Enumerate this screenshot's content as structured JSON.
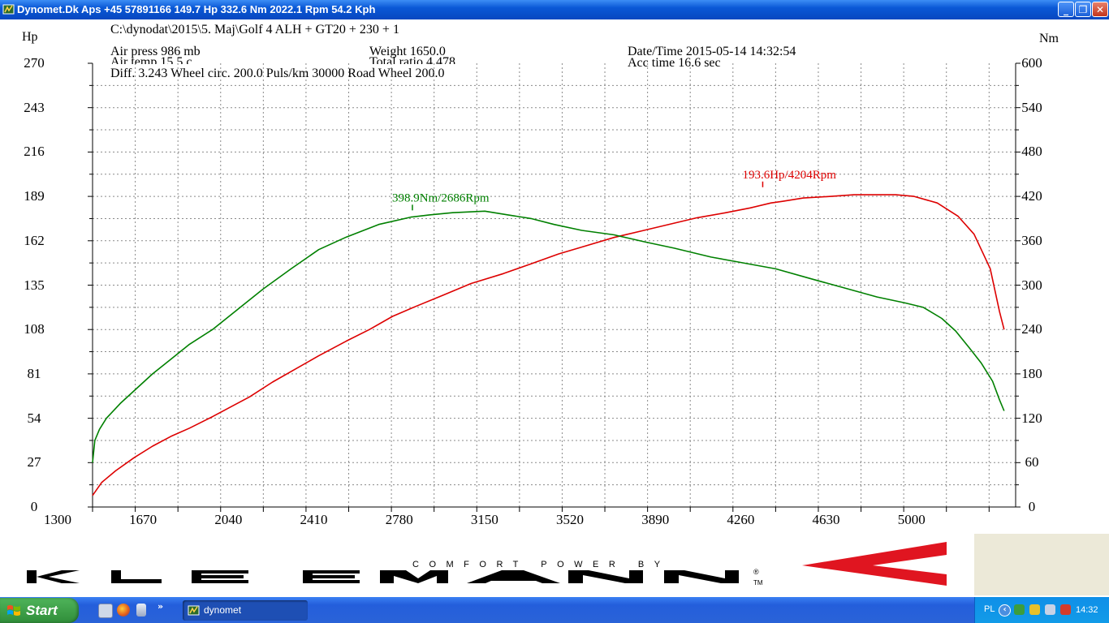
{
  "window": {
    "title": "Dynomet.Dk Aps +45 57891166  149.7 Hp 332.6 Nm 2022.1 Rpm 54.2 Kph",
    "buttons": [
      "_",
      "❐",
      "✕"
    ]
  },
  "header": {
    "path": "C:\\dynodat\\2015\\5. Maj\\Golf 4 ALH + GT20 + 230 + 1",
    "air_press": "Air press   986 mb",
    "air_temp": "Air temp   15.5 c",
    "weight": "Weight   1650.0",
    "total_ratio": "Total ratio 4.478",
    "datetime": "Date/Time  2015-05-14 14:32:54",
    "acc_time": "Acc time   16.6 sec",
    "diff_line": "Diff.     3.243   Wheel circ. 200.0   Puls/km   30000   Road Wheel 200.0"
  },
  "chart_data": {
    "type": "line",
    "xlabel": "",
    "ylabel": "Hp",
    "y2label": "Nm",
    "xlim": [
      1300,
      5300
    ],
    "ylim": [
      0,
      270
    ],
    "y2lim": [
      0,
      600
    ],
    "x_ticks": [
      "1300",
      "1670",
      "2040",
      "2410",
      "2780",
      "3150",
      "3520",
      "3890",
      "4260",
      "4630",
      "5000"
    ],
    "y_ticks": [
      "0",
      "27",
      "54",
      "81",
      "108",
      "135",
      "162",
      "189",
      "216",
      "243",
      "270"
    ],
    "y2_ticks": [
      "0",
      "60",
      "120",
      "180",
      "240",
      "300",
      "360",
      "420",
      "480",
      "540",
      "600"
    ],
    "grid": true,
    "series": [
      {
        "name": "",
        "axis": "left",
        "color": "#dd0000",
        "points": [
          [
            1300,
            7
          ],
          [
            1340,
            15
          ],
          [
            1400,
            22
          ],
          [
            1480,
            30
          ],
          [
            1560,
            37
          ],
          [
            1640,
            43
          ],
          [
            1720,
            48
          ],
          [
            1820,
            55
          ],
          [
            1900,
            61
          ],
          [
            1980,
            67
          ],
          [
            2080,
            76
          ],
          [
            2180,
            84
          ],
          [
            2280,
            92
          ],
          [
            2400,
            101
          ],
          [
            2500,
            108
          ],
          [
            2600,
            116
          ],
          [
            2700,
            122
          ],
          [
            2820,
            129
          ],
          [
            2940,
            136
          ],
          [
            3080,
            142
          ],
          [
            3200,
            148
          ],
          [
            3320,
            154
          ],
          [
            3440,
            159
          ],
          [
            3560,
            164
          ],
          [
            3680,
            168
          ],
          [
            3800,
            172
          ],
          [
            3920,
            176
          ],
          [
            4040,
            179
          ],
          [
            4150,
            182
          ],
          [
            4240,
            185
          ],
          [
            4290,
            186
          ],
          [
            4380,
            188
          ],
          [
            4500,
            189
          ],
          [
            4600,
            190
          ],
          [
            4700,
            190
          ],
          [
            4780,
            190
          ],
          [
            4860,
            189
          ],
          [
            4960,
            185
          ],
          [
            5050,
            177
          ],
          [
            5120,
            166
          ],
          [
            5190,
            145
          ],
          [
            5230,
            119
          ],
          [
            5250,
            108
          ]
        ]
      },
      {
        "name": "",
        "axis": "right",
        "color": "#008000",
        "points": [
          [
            1300,
            60
          ],
          [
            1310,
            90
          ],
          [
            1330,
            105
          ],
          [
            1360,
            120
          ],
          [
            1420,
            140
          ],
          [
            1490,
            160
          ],
          [
            1560,
            180
          ],
          [
            1640,
            200
          ],
          [
            1720,
            220
          ],
          [
            1820,
            240
          ],
          [
            1940,
            270
          ],
          [
            2040,
            295
          ],
          [
            2160,
            322
          ],
          [
            2280,
            348
          ],
          [
            2400,
            365
          ],
          [
            2540,
            382
          ],
          [
            2680,
            392
          ],
          [
            2760,
            395
          ],
          [
            2860,
            398
          ],
          [
            3000,
            400
          ],
          [
            3100,
            395
          ],
          [
            3200,
            390
          ],
          [
            3300,
            382
          ],
          [
            3420,
            374
          ],
          [
            3560,
            368
          ],
          [
            3700,
            358
          ],
          [
            3820,
            350
          ],
          [
            3980,
            338
          ],
          [
            4120,
            330
          ],
          [
            4260,
            322
          ],
          [
            4420,
            308
          ],
          [
            4560,
            296
          ],
          [
            4700,
            284
          ],
          [
            4820,
            276
          ],
          [
            4900,
            270
          ],
          [
            4980,
            255
          ],
          [
            5040,
            238
          ],
          [
            5100,
            215
          ],
          [
            5150,
            195
          ],
          [
            5200,
            170
          ],
          [
            5230,
            145
          ],
          [
            5250,
            130
          ]
        ]
      }
    ],
    "annotations": [
      {
        "text": "193.6Hp/4204Rpm",
        "color": "#dd0000",
        "x": 4204,
        "axis": "left",
        "value": 193.6
      },
      {
        "text": "398.9Nm/2686Rpm",
        "color": "#008000",
        "x": 2686,
        "axis": "right",
        "value": 398.9
      }
    ]
  },
  "logo": {
    "brand": "KLEEMANN",
    "tagline": "COMFORT POWER BY",
    "reg": "®",
    "tm": "TM",
    "accent_color": "#e01520"
  },
  "taskbar": {
    "start_label": "Start",
    "task_label": "dynomet",
    "chevron": "»",
    "tray_lang": "PL",
    "tray_arrow": "‹",
    "clock": "14:32"
  }
}
